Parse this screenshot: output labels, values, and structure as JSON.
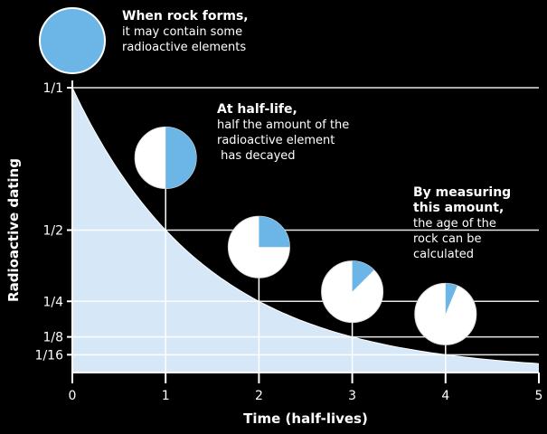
{
  "chart_data": {
    "type": "area",
    "xlabel": "Time (half-lives)",
    "ylabel": "Radioactive dating",
    "x_ticks": [
      "0",
      "1",
      "2",
      "3",
      "4",
      "5"
    ],
    "xlim": [
      0,
      5
    ],
    "y_ticks": [
      {
        "label": "1/1",
        "value": 1
      },
      {
        "label": "1/2",
        "value": 0.5
      },
      {
        "label": "1/4",
        "value": 0.25
      },
      {
        "label": "1/8",
        "value": 0.125
      },
      {
        "label": "1/16",
        "value": 0.0625
      }
    ],
    "ylim": [
      0,
      1
    ],
    "grid": true,
    "series": [
      {
        "x": [
          0,
          1,
          2,
          3,
          4,
          5
        ],
        "y": [
          1,
          0.5,
          0.25,
          0.125,
          0.0625,
          0.03125
        ]
      }
    ],
    "pie_markers": [
      {
        "half_life": 0,
        "remaining_fraction": 1
      },
      {
        "half_life": 1,
        "remaining_fraction": 0.5
      },
      {
        "half_life": 2,
        "remaining_fraction": 0.25
      },
      {
        "half_life": 3,
        "remaining_fraction": 0.125
      },
      {
        "half_life": 4,
        "remaining_fraction": 0.0625
      }
    ],
    "colors": {
      "background": "#000000",
      "fill": "#d6e8f8",
      "radioactive": "#6bb6e6",
      "decayed": "#ffffff",
      "text": "#ffffff",
      "grid": "#ffffff"
    }
  },
  "annotations": {
    "rock_forms": {
      "title": "When rock forms,",
      "lines": [
        "it may contain some",
        "radioactive elements"
      ]
    },
    "half_life": {
      "title": "At half-life,",
      "lines": [
        "half the amount of the",
        "radioactive element",
        " has decayed"
      ]
    },
    "measuring": {
      "title_lines": [
        "By measuring",
        "this amount,"
      ],
      "lines": [
        "the age of the",
        "rock can be",
        "calculated"
      ]
    }
  }
}
